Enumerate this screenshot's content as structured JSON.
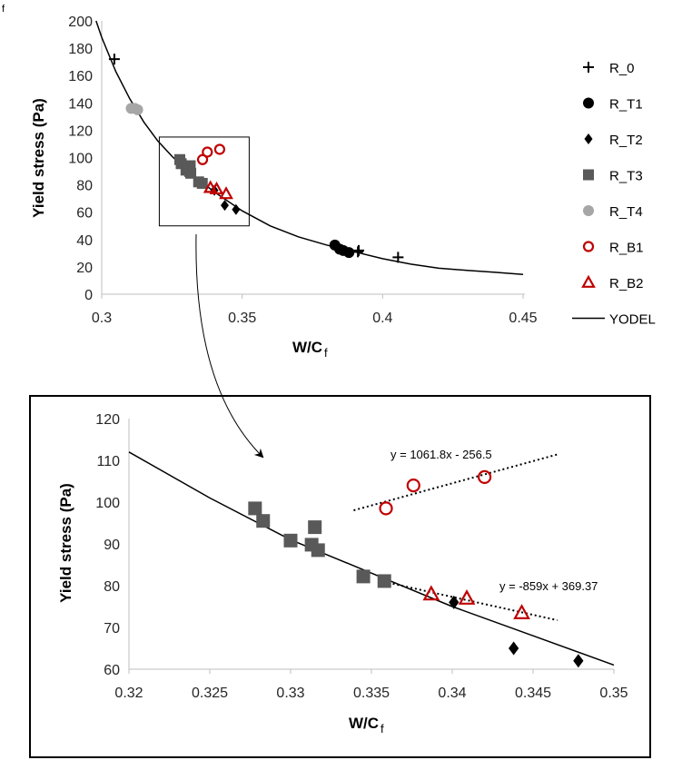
{
  "panel_label": "f",
  "chart_data": [
    {
      "type": "scatter",
      "name": "main",
      "xlabel": "W/C",
      "xlabel_sub": "f",
      "ylabel": "Yield stress (Pa)",
      "xlim": [
        0.3,
        0.45
      ],
      "ylim": [
        0,
        200
      ],
      "xticks": [
        "0.3",
        "0.35",
        "0.4",
        "0.45"
      ],
      "yticks": [
        "0",
        "20",
        "40",
        "60",
        "80",
        "100",
        "120",
        "140",
        "160",
        "180",
        "200"
      ],
      "legend_position": "right",
      "inset_box": {
        "x": [
          0.3205,
          0.3525
        ],
        "y": [
          50,
          115
        ]
      },
      "series": [
        {
          "name": "R_0",
          "marker": "plus",
          "color": "#000000",
          "points": [
            [
              0.3045,
              172
            ],
            [
              0.3912,
              31
            ],
            [
              0.4055,
              27
            ],
            [
              0.3915,
              32
            ]
          ]
        },
        {
          "name": "R_T1",
          "marker": "circle",
          "color": "#000000",
          "points": [
            [
              0.383,
              36
            ],
            [
              0.3847,
              33
            ],
            [
              0.386,
              32
            ],
            [
              0.388,
              30.5
            ]
          ]
        },
        {
          "name": "R_T2",
          "marker": "diamond",
          "color": "#000000",
          "points": [
            [
              0.3401,
              76
            ],
            [
              0.3438,
              65
            ],
            [
              0.3478,
              62
            ]
          ]
        },
        {
          "name": "R_T3",
          "marker": "square",
          "color": "#595959",
          "points": [
            [
              0.3278,
              98.5
            ],
            [
              0.3283,
              95.5
            ],
            [
              0.33,
              90.8
            ],
            [
              0.3313,
              89.8
            ],
            [
              0.3317,
              88.5
            ],
            [
              0.3315,
              94
            ],
            [
              0.3345,
              82.2
            ],
            [
              0.3358,
              81.1
            ]
          ]
        },
        {
          "name": "R_T4",
          "marker": "circle",
          "color": "#a6a6a6",
          "points": [
            [
              0.3105,
              136
            ],
            [
              0.3118,
              136
            ],
            [
              0.3128,
              135
            ]
          ]
        },
        {
          "name": "R_B1",
          "marker": "circle-open",
          "color": "#c00000",
          "points": [
            [
              0.3359,
              98.5
            ],
            [
              0.3376,
              104
            ],
            [
              0.342,
              106
            ]
          ]
        },
        {
          "name": "R_B2",
          "marker": "triangle-open",
          "color": "#c00000",
          "points": [
            [
              0.3387,
              78
            ],
            [
              0.3409,
              77
            ],
            [
              0.3443,
              73.5
            ]
          ]
        },
        {
          "name": "YODEL",
          "marker": "line",
          "color": "#000000"
        }
      ],
      "yodel_curve": {
        "x": [
          0.298,
          0.3,
          0.305,
          0.31,
          0.315,
          0.32,
          0.325,
          0.33,
          0.335,
          0.34,
          0.345,
          0.35,
          0.36,
          0.37,
          0.38,
          0.39,
          0.4,
          0.41,
          0.42,
          0.43,
          0.44,
          0.45
        ],
        "y": [
          200,
          188,
          163,
          143,
          126,
          112,
          101,
          91,
          83,
          75,
          68,
          61,
          50,
          42,
          36,
          31,
          26,
          22,
          19,
          17.5,
          16,
          14.5
        ]
      }
    },
    {
      "type": "scatter",
      "name": "inset",
      "xlabel": "W/C",
      "xlabel_sub": "f",
      "ylabel": "Yield stress (Pa)",
      "xlim": [
        0.32,
        0.35
      ],
      "ylim": [
        60,
        120
      ],
      "xticks": [
        "0.32",
        "0.325",
        "0.33",
        "0.335",
        "0.34",
        "0.345",
        "0.35"
      ],
      "yticks": [
        "60",
        "70",
        "80",
        "90",
        "100",
        "110",
        "120"
      ],
      "trendlines": [
        {
          "series": "R_B1",
          "equation": "y = 1061.8x - 256.5",
          "slope": 1061.8,
          "intercept": -256.5,
          "x": [
            0.3339,
            0.3465
          ]
        },
        {
          "series": "R_B2",
          "equation": "y = -859x + 369.37",
          "slope": -859,
          "intercept": 369.37,
          "x": [
            0.3355,
            0.3465
          ]
        }
      ]
    }
  ]
}
